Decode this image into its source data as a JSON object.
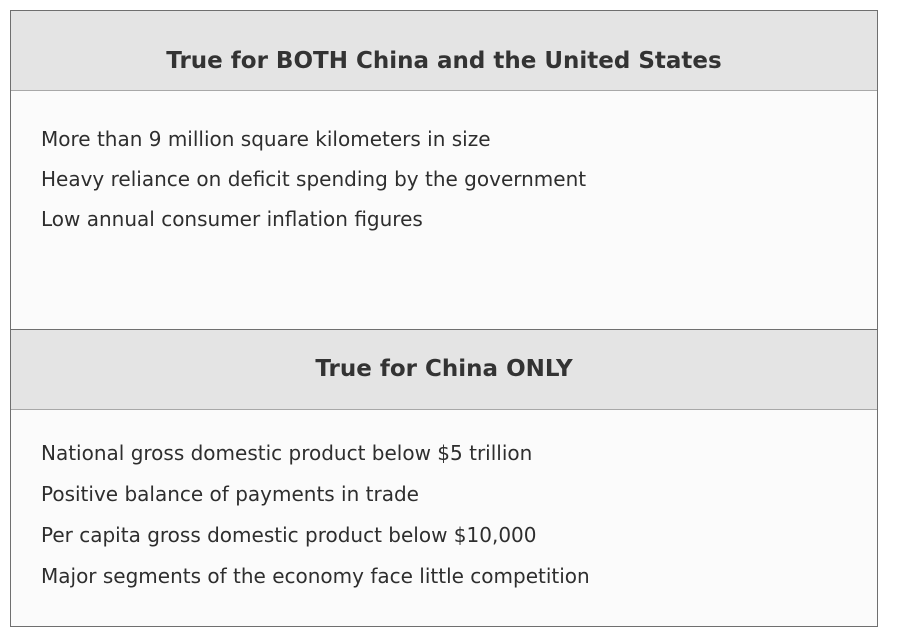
{
  "sections": [
    {
      "heading": "True for BOTH China and the United States",
      "items": [
        "More than 9 million square kilometers in size",
        "Heavy reliance on deficit spending by the government",
        "Low annual consumer inflation figures"
      ]
    },
    {
      "heading": "True for China ONLY",
      "items": [
        "National gross domestic product below $5 trillion",
        "Positive balance of payments in trade",
        "Per capita gross domestic product below $10,000",
        "Major segments of the economy face little competition"
      ]
    }
  ]
}
